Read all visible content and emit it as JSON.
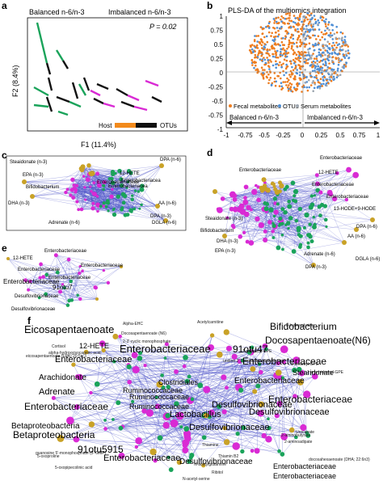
{
  "panel_a": {
    "letter": "a",
    "group_left": "Balanced n-6/n-3",
    "group_right": "Imbalanced n-6/n-3",
    "pvalue": "P = 0.02",
    "ylabel": "F2 (8.4%)",
    "xlabel": "F1 (11.4%)",
    "legend_host": "Host",
    "legend_otus": "OTUs",
    "colors": {
      "balanced": "#1aa35a",
      "imbalanced": "#d92ad4",
      "host": "#f28a1c",
      "otus": "#111111"
    }
  },
  "panel_b": {
    "letter": "b",
    "title": "PLS-DA of the multiomics integration",
    "yticks": [
      "1",
      "0.75",
      "0.5",
      "0.25",
      "0",
      "-0.25",
      "-0.5",
      "-0.75",
      "-1"
    ],
    "xticks": [
      "-1",
      "-0.75",
      "-0.5",
      "-0.25",
      "0",
      "0.25",
      "0.5",
      "0.75",
      "1"
    ],
    "legend": [
      "Fecal metabolites",
      "OTUs",
      "Serum metabolites"
    ],
    "arrow_left": "Balanced n-6/n-3",
    "arrow_right": "Imbalanced n-6/n-3",
    "colors": {
      "orange": "#ee7d1f",
      "blue": "#4f8fd6",
      "gray": "#9ea6b0"
    }
  },
  "panel_c": {
    "letter": "c",
    "labels": [
      "Steaidonate (n-3)",
      "EPA (n-3)",
      "Bifidobacterium",
      "DHA (n-3)",
      "Adrenate (n-6)",
      "12-HETE",
      "Enterobacteriaceae",
      "Enterobacteriacea",
      "Enterobacteriacea",
      "DPA (n-6)",
      "AA (n-6)",
      "DPA (n-3)",
      "DGLA (n-6)"
    ]
  },
  "panel_d": {
    "letter": "d",
    "labels": [
      "Enterobacteriaceae",
      "Enterobacteriaceae",
      "12-HETE",
      "Enterobacteriaceae",
      "Enterobacteriaceae",
      "13-HODE+9-HODE",
      "Steaidonate (n-3)",
      "DHA (n-3)",
      "Bifidobacterium",
      "DPA (n-6)",
      "AA (n-6)",
      "EPA (n-3)",
      "Adrenate (n-6)",
      "DGLA (n-6)",
      "DPA (n-3)"
    ]
  },
  "panel_e": {
    "letter": "e",
    "labels": [
      "Enterobacteriaceae",
      "12-HETE",
      "Enterobacteriaceae",
      "Enterobacteriaceae",
      "Enterobacteriaceae",
      "Enterobacteriaceae",
      "91otu7",
      "Desulfovibrionaceae",
      "Desulfovibrionaceae"
    ]
  },
  "panel_f": {
    "letter": "f",
    "labels": [
      {
        "t": "Eicosapentaenoate",
        "s": 13
      },
      {
        "t": "Bifidobacterium",
        "s": 12
      },
      {
        "t": "Docosapentaenoate(N6)",
        "s": 12
      },
      {
        "t": "Enterobacteriaceae",
        "s": 13
      },
      {
        "t": "91otu47",
        "s": 12
      },
      {
        "t": "12-HETE",
        "s": 9
      },
      {
        "t": "Enterobacteriaceae",
        "s": 11
      },
      {
        "t": "Enterobacteriaceae",
        "s": 12
      },
      {
        "t": "Stearidonate",
        "s": 9
      },
      {
        "t": "Arachidonate",
        "s": 10
      },
      {
        "t": "Clostridiales",
        "s": 9
      },
      {
        "t": "Enterobacteriaceae",
        "s": 10
      },
      {
        "t": "Adrenate",
        "s": 11
      },
      {
        "t": "Ruminococcaceae",
        "s": 9
      },
      {
        "t": "Enterobacteriaceae",
        "s": 12
      },
      {
        "t": "Enterobacteriaceae",
        "s": 12
      },
      {
        "t": "Desulfovibrionaceae",
        "s": 11
      },
      {
        "t": "Desulfovibrionaceae",
        "s": 11
      },
      {
        "t": "Betaproteobacteria",
        "s": 10
      },
      {
        "t": "Betaproteobacteria",
        "s": 12
      },
      {
        "t": "Lactobacillus",
        "s": 11
      },
      {
        "t": "Desulfovibrionaceae",
        "s": 11
      },
      {
        "t": "91otu5915",
        "s": 12
      },
      {
        "t": "Enterobacteriaceae",
        "s": 11
      },
      {
        "t": "Desulfovibrionaceae",
        "s": 10
      },
      {
        "t": "Ruminococcaceae",
        "s": 9
      },
      {
        "t": "Ruminococcaceae",
        "s": 9
      },
      {
        "t": "Enterobacteriaceae",
        "s": 9
      },
      {
        "t": "Enterobacteriaceae",
        "s": 9
      }
    ],
    "small_labels": [
      "Alpha-EHC",
      "Acetylcarnitine",
      "5-hydroxylysine",
      "Cortisol",
      "Docosapentaenoate (N6)",
      "2-3'-cyclic monophosphate",
      "eicosapentaenoate (EPA) 20:5n-3",
      "alpha-hydroxyisocaproic acid",
      "1-palmitoyl-GPE",
      "uridine-2',3'-cyclic monophosphate",
      "1-stearoyl-GPE",
      "1-arachidonoyl-GPE",
      "2-aminobutyrate",
      "2-aminoadipate",
      "guanosine 5'-monophosphate (5'-GMP)",
      "Thiamine",
      "Urocanate",
      "5-oxoproline",
      "Thiamin B2",
      "N-acetylglutamine",
      "5-oxopipecolinic acid",
      "Ribitol",
      "N-acetyl-serine",
      "docosahexaenoate (DHA; 22:6n3)"
    ]
  }
}
